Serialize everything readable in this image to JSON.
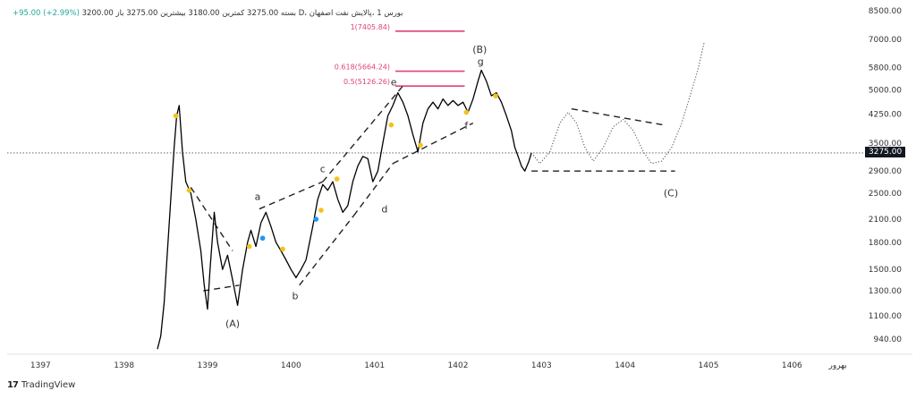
{
  "header": {
    "symbol": "1 ،پالایش نفت اصفهان",
    "market": "D، بورس",
    "open": "باز 3200.00",
    "high": "بیشترین 3275.00",
    "low": "کمترین 3180.00",
    "close": "بسته 3275.00",
    "change": "+95.00 (+2.99%)"
  },
  "footer": {
    "logo": "17",
    "brand": "TradingView"
  },
  "last_price_badge": "3275.00",
  "colors": {
    "fib": "#e0427a",
    "price": "#000000",
    "dot_yellow": "#f4c21b",
    "dot_blue": "#2196f3",
    "badge": "#131722"
  },
  "chart_data": {
    "type": "line",
    "y_scale": "log",
    "ylim": [
      850,
      8800
    ],
    "xlim": [
      1396.6,
      1406.8
    ],
    "x_ticks": [
      "1397",
      "1398",
      "1399",
      "1400",
      "1401",
      "1402",
      "1403",
      "1404",
      "1405",
      "1406",
      "بهرور"
    ],
    "y_ticks": [
      "8500.00",
      "7000.00",
      "5800.00",
      "5000.00",
      "4250.00",
      "3500.00",
      "2900.00",
      "2500.00",
      "2100.00",
      "1800.00",
      "1500.00",
      "1300.00",
      "1100.00",
      "940.00"
    ],
    "last_price": 3275,
    "series": [
      {
        "values": [
          [
            1398.4,
            880
          ],
          [
            1398.44,
            960
          ],
          [
            1398.48,
            1200
          ],
          [
            1398.52,
            1700
          ],
          [
            1398.56,
            2400
          ],
          [
            1398.6,
            3400
          ],
          [
            1398.63,
            4200
          ],
          [
            1398.66,
            4500
          ],
          [
            1398.7,
            3300
          ],
          [
            1398.74,
            2700
          ],
          [
            1398.8,
            2500
          ],
          [
            1398.86,
            2100
          ],
          [
            1398.92,
            1700
          ],
          [
            1398.96,
            1350
          ],
          [
            1399.0,
            1150
          ],
          [
            1399.03,
            1500
          ],
          [
            1399.08,
            2200
          ],
          [
            1399.12,
            1800
          ],
          [
            1399.18,
            1500
          ],
          [
            1399.24,
            1650
          ],
          [
            1399.3,
            1400
          ],
          [
            1399.36,
            1180
          ],
          [
            1399.42,
            1500
          ],
          [
            1399.48,
            1800
          ],
          [
            1399.52,
            1950
          ],
          [
            1399.58,
            1750
          ],
          [
            1399.64,
            2050
          ],
          [
            1399.7,
            2200
          ],
          [
            1399.76,
            2000
          ],
          [
            1399.82,
            1800
          ],
          [
            1399.88,
            1700
          ],
          [
            1399.94,
            1600
          ],
          [
            1400.0,
            1500
          ],
          [
            1400.06,
            1420
          ],
          [
            1400.12,
            1500
          ],
          [
            1400.18,
            1600
          ],
          [
            1400.26,
            2000
          ],
          [
            1400.32,
            2400
          ],
          [
            1400.38,
            2650
          ],
          [
            1400.44,
            2550
          ],
          [
            1400.5,
            2700
          ],
          [
            1400.56,
            2400
          ],
          [
            1400.62,
            2200
          ],
          [
            1400.68,
            2300
          ],
          [
            1400.74,
            2700
          ],
          [
            1400.8,
            3000
          ],
          [
            1400.86,
            3200
          ],
          [
            1400.92,
            3150
          ],
          [
            1400.98,
            2700
          ],
          [
            1401.04,
            2900
          ],
          [
            1401.1,
            3500
          ],
          [
            1401.16,
            4200
          ],
          [
            1401.22,
            4500
          ],
          [
            1401.28,
            4900
          ],
          [
            1401.34,
            4600
          ],
          [
            1401.4,
            4200
          ],
          [
            1401.46,
            3700
          ],
          [
            1401.52,
            3300
          ],
          [
            1401.58,
            4000
          ],
          [
            1401.64,
            4400
          ],
          [
            1401.7,
            4600
          ],
          [
            1401.76,
            4400
          ],
          [
            1401.82,
            4700
          ],
          [
            1401.88,
            4500
          ],
          [
            1401.94,
            4650
          ],
          [
            1402.0,
            4500
          ],
          [
            1402.06,
            4600
          ],
          [
            1402.12,
            4300
          ],
          [
            1402.18,
            4700
          ],
          [
            1402.24,
            5300
          ],
          [
            1402.28,
            5700
          ],
          [
            1402.34,
            5300
          ],
          [
            1402.4,
            4800
          ],
          [
            1402.46,
            4900
          ],
          [
            1402.52,
            4600
          ],
          [
            1402.58,
            4200
          ],
          [
            1402.64,
            3800
          ],
          [
            1402.68,
            3400
          ],
          [
            1402.72,
            3200
          ],
          [
            1402.76,
            3000
          ],
          [
            1402.8,
            2900
          ],
          [
            1402.85,
            3100
          ],
          [
            1402.88,
            3275
          ]
        ]
      },
      {
        "values": [
          [
            1402.88,
            3275
          ],
          [
            1402.98,
            3050
          ],
          [
            1403.1,
            3300
          ],
          [
            1403.22,
            4000
          ],
          [
            1403.32,
            4300
          ],
          [
            1403.42,
            4000
          ],
          [
            1403.52,
            3400
          ],
          [
            1403.62,
            3100
          ],
          [
            1403.74,
            3400
          ],
          [
            1403.86,
            3900
          ],
          [
            1403.98,
            4100
          ],
          [
            1404.1,
            3800
          ],
          [
            1404.22,
            3300
          ],
          [
            1404.32,
            3050
          ],
          [
            1404.44,
            3100
          ],
          [
            1404.56,
            3400
          ],
          [
            1404.68,
            4000
          ],
          [
            1404.78,
            4800
          ],
          [
            1404.88,
            5800
          ],
          [
            1404.95,
            6900
          ]
        ]
      }
    ],
    "wave_lines": [
      [
        [
          1398.95,
          1300
        ],
        [
          1399.38,
          1350
        ]
      ],
      [
        [
          1398.8,
          2600
        ],
        [
          1399.3,
          1700
        ]
      ],
      [
        [
          1399.62,
          2250
        ],
        [
          1400.38,
          2700
        ]
      ],
      [
        [
          1400.1,
          1350
        ],
        [
          1400.75,
          2150
        ]
      ],
      [
        [
          1400.38,
          2700
        ],
        [
          1401.36,
          5200
        ]
      ],
      [
        [
          1400.75,
          2150
        ],
        [
          1401.22,
          3050
        ]
      ],
      [
        [
          1401.22,
          3050
        ],
        [
          1402.18,
          4000
        ]
      ],
      [
        [
          1403.36,
          4400
        ],
        [
          1404.46,
          3950
        ]
      ],
      [
        [
          1402.88,
          2900
        ],
        [
          1404.6,
          2900
        ]
      ]
    ],
    "fib_levels": [
      {
        "label": "1(7405.84)",
        "value": 7405.84,
        "x": [
          1401.25,
          1402.08
        ]
      },
      {
        "label": "0.618(5664.24)",
        "value": 5664.24,
        "x": [
          1401.25,
          1402.08
        ]
      },
      {
        "label": "0.5(5126.26)",
        "value": 5126.26,
        "x": [
          1401.25,
          1402.08
        ]
      }
    ],
    "wave_labels": [
      {
        "text": "(A)",
        "x": 1399.3,
        "y": 1020
      },
      {
        "text": "a",
        "x": 1399.6,
        "y": 2390
      },
      {
        "text": "b",
        "x": 1400.05,
        "y": 1230
      },
      {
        "text": "c",
        "x": 1400.38,
        "y": 2880
      },
      {
        "text": "d",
        "x": 1401.12,
        "y": 2200
      },
      {
        "text": "e",
        "x": 1401.23,
        "y": 5150
      },
      {
        "text": "f",
        "x": 1402.1,
        "y": 3850
      },
      {
        "text": "g",
        "x": 1402.27,
        "y": 5900
      },
      {
        "text": "(B)",
        "x": 1402.26,
        "y": 6400
      },
      {
        "text": "(C)",
        "x": 1404.55,
        "y": 2450
      }
    ],
    "markers": [
      {
        "x": 1398.62,
        "y": 4200,
        "color": "yellow"
      },
      {
        "x": 1398.78,
        "y": 2550,
        "color": "yellow"
      },
      {
        "x": 1399.5,
        "y": 1750,
        "color": "yellow"
      },
      {
        "x": 1399.66,
        "y": 1850,
        "color": "blue"
      },
      {
        "x": 1399.9,
        "y": 1720,
        "color": "yellow"
      },
      {
        "x": 1400.3,
        "y": 2100,
        "color": "blue"
      },
      {
        "x": 1400.36,
        "y": 2230,
        "color": "yellow"
      },
      {
        "x": 1400.55,
        "y": 2750,
        "color": "yellow"
      },
      {
        "x": 1401.2,
        "y": 3950,
        "color": "yellow"
      },
      {
        "x": 1401.55,
        "y": 3450,
        "color": "yellow"
      },
      {
        "x": 1402.1,
        "y": 4300,
        "color": "yellow"
      },
      {
        "x": 1402.45,
        "y": 4800,
        "color": "yellow"
      }
    ]
  }
}
